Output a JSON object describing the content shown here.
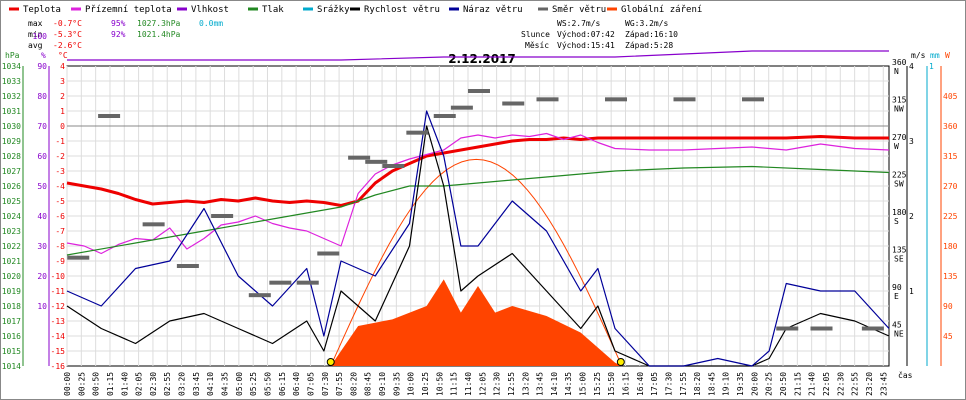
{
  "chart_data": {
    "type": "line",
    "title": "2.12.2017",
    "legend": [
      {
        "label": "Teplota",
        "color": "#ee0000"
      },
      {
        "label": "Přízemní teplota",
        "color": "#dd22dd"
      },
      {
        "label": "Vlhkost",
        "color": "#8800cc"
      },
      {
        "label": "Tlak",
        "color": "#228822"
      },
      {
        "label": "Srážky",
        "color": "#00aacc"
      },
      {
        "label": "Rychlost větru",
        "color": "#000000"
      },
      {
        "label": "Náraz větru",
        "color": "#000099"
      },
      {
        "label": "Směr větru",
        "color": "#666666"
      },
      {
        "label": "Globální záření",
        "color": "#ff4400"
      }
    ],
    "stats": {
      "max": {
        "label": "max",
        "temp": "-0.7°C",
        "hum": "95%",
        "press": "1027.3hPa",
        "rain": "0.0mm"
      },
      "min": {
        "label": "min",
        "temp": "-5.3°C",
        "hum": "92%",
        "press": "1021.4hPa"
      },
      "avg": {
        "label": "avg",
        "temp": "-2.6°C"
      }
    },
    "info": {
      "ws": "WS:2.7m/s",
      "wg": "WG:3.2m/s",
      "slunce": "Slunce",
      "sun_rise": "Východ:07:42",
      "sun_set": "Západ:16:10",
      "mesic": "Měsíc",
      "moon_rise": "Východ:15:41",
      "moon_set": "Západ:5:28"
    },
    "axes": {
      "hpa": {
        "unit": "hPa",
        "ticks": [
          "1034",
          "1033",
          "1032",
          "1031",
          "1030",
          "1029",
          "1028",
          "1027",
          "1026",
          "1025",
          "1024",
          "1023",
          "1022",
          "1021",
          "1020",
          "1019",
          "1018",
          "1017",
          "1016",
          "1015",
          "1014"
        ],
        "range": [
          1014,
          1034
        ]
      },
      "pct": {
        "unit": "%",
        "ticks": [
          "100",
          "90",
          "80",
          "70",
          "60",
          "50",
          "40",
          "30",
          "20",
          "10"
        ],
        "range": [
          0,
          100
        ]
      },
      "temp": {
        "unit": "°C",
        "ticks": [
          "4",
          "3",
          "2",
          "1",
          "0",
          "-1",
          "-2",
          "-3",
          "-4",
          "-5",
          "-6",
          "-7",
          "-8",
          "-9",
          "-10",
          "-11",
          "-12",
          "-13",
          "-14",
          "-15",
          "-16"
        ],
        "range": [
          -16,
          4
        ]
      },
      "ms": {
        "unit": "m/s",
        "ticks": [
          "4",
          "3",
          "2",
          "1"
        ],
        "range": [
          0,
          4
        ]
      },
      "mm": {
        "unit": "mm",
        "ticks": [
          "1"
        ]
      },
      "dir": {
        "ticks": [
          "360",
          "315",
          "270",
          "225",
          "180",
          "135",
          "90",
          "45"
        ],
        "letters": [
          "N",
          "NW",
          "W",
          "SW",
          "S",
          "SE",
          "E",
          "NE"
        ]
      },
      "w": {
        "unit": "W",
        "ticks": [
          "405",
          "360",
          "315",
          "270",
          "225",
          "180",
          "135",
          "90",
          "45"
        ],
        "range": [
          0,
          405
        ]
      },
      "x_unit": "čas",
      "x_ticks": [
        "00:00",
        "00:25",
        "00:50",
        "01:15",
        "01:40",
        "02:05",
        "02:30",
        "02:55",
        "03:20",
        "03:45",
        "04:10",
        "04:35",
        "05:00",
        "05:25",
        "05:50",
        "06:15",
        "06:40",
        "07:05",
        "07:30",
        "07:55",
        "08:20",
        "08:45",
        "09:10",
        "09:35",
        "10:00",
        "10:25",
        "10:50",
        "11:15",
        "11:40",
        "12:05",
        "12:30",
        "12:55",
        "13:20",
        "13:45",
        "14:10",
        "14:35",
        "15:00",
        "15:25",
        "15:50",
        "16:15",
        "16:40",
        "17:05",
        "17:30",
        "17:55",
        "18:20",
        "18:45",
        "19:10",
        "19:35",
        "20:00",
        "20:25",
        "20:50",
        "21:15",
        "21:40",
        "22:05",
        "22:30",
        "22:55",
        "23:20",
        "23:45"
      ]
    },
    "series": [
      {
        "name": "Teplota",
        "unit": "°C",
        "x": [
          0,
          0.5,
          1,
          1.5,
          2,
          2.5,
          3,
          3.5,
          4,
          4.5,
          5,
          5.5,
          6,
          6.5,
          7,
          7.5,
          8,
          8.5,
          9,
          9.5,
          10,
          10.5,
          11,
          11.5,
          12,
          12.5,
          13,
          13.5,
          14,
          14.5,
          15,
          15.5,
          16,
          17,
          18,
          19,
          20,
          21,
          22,
          23,
          24
        ],
        "y": [
          -3.8,
          -4.0,
          -4.2,
          -4.5,
          -4.9,
          -5.2,
          -5.1,
          -5.0,
          -5.1,
          -4.9,
          -5.0,
          -4.8,
          -5.0,
          -5.1,
          -5.0,
          -5.1,
          -5.3,
          -5.0,
          -3.8,
          -3.0,
          -2.5,
          -2.0,
          -1.8,
          -1.6,
          -1.4,
          -1.2,
          -1.0,
          -0.9,
          -0.9,
          -0.8,
          -0.9,
          -0.8,
          -0.8,
          -0.8,
          -0.8,
          -0.8,
          -0.8,
          -0.8,
          -0.7,
          -0.8,
          -0.8
        ]
      },
      {
        "name": "Přízemní teplota",
        "unit": "°C",
        "x": [
          0,
          0.5,
          1,
          1.5,
          2,
          2.5,
          3,
          3.5,
          4,
          4.5,
          5,
          5.5,
          6,
          6.5,
          7,
          7.5,
          8,
          8.5,
          9,
          9.5,
          10,
          10.5,
          11,
          11.5,
          12,
          12.5,
          13,
          13.5,
          14,
          14.5,
          15,
          15.5,
          16,
          17,
          18,
          19,
          20,
          21,
          22,
          23,
          24
        ],
        "y": [
          -7.8,
          -8.0,
          -8.5,
          -7.9,
          -7.5,
          -7.6,
          -6.8,
          -8.2,
          -7.5,
          -6.6,
          -6.4,
          -6.0,
          -6.5,
          -6.8,
          -7.0,
          -7.5,
          -8.0,
          -4.5,
          -3.2,
          -2.6,
          -2.2,
          -1.9,
          -1.6,
          -0.8,
          -0.6,
          -0.8,
          -0.6,
          -0.7,
          -0.5,
          -0.9,
          -0.6,
          -1.1,
          -1.5,
          -1.6,
          -1.6,
          -1.5,
          -1.4,
          -1.6,
          -1.2,
          -1.5,
          -1.6
        ]
      },
      {
        "name": "Vlhkost",
        "unit": "%",
        "x": [
          0,
          4,
          8,
          11,
          12,
          16,
          20,
          24
        ],
        "y": [
          92,
          92,
          92,
          93,
          93,
          93,
          95,
          95
        ]
      },
      {
        "name": "Tlak",
        "unit": "hPa",
        "x": [
          0,
          2,
          4,
          6,
          8,
          9,
          10,
          11,
          12,
          14,
          16,
          18,
          20,
          22,
          24
        ],
        "y": [
          1021.4,
          1022.2,
          1023.0,
          1023.8,
          1024.6,
          1025.4,
          1026.0,
          1026.0,
          1026.2,
          1026.6,
          1027.0,
          1027.2,
          1027.3,
          1027.1,
          1026.9
        ]
      },
      {
        "name": "Rychlost větru",
        "unit": "m/s",
        "x": [
          0,
          1,
          2,
          3,
          4,
          5,
          6,
          7,
          7.5,
          8,
          9,
          10,
          10.5,
          11,
          11.5,
          12,
          13,
          14,
          15,
          15.5,
          16,
          17,
          18,
          19,
          20,
          20.5,
          21,
          22,
          23,
          24
        ],
        "y": [
          0.8,
          0.5,
          0.3,
          0.6,
          0.7,
          0.5,
          0.3,
          0.6,
          0.2,
          1.0,
          0.6,
          1.6,
          3.2,
          2.4,
          1.0,
          1.2,
          1.5,
          1.0,
          0.5,
          0.8,
          0.2,
          0,
          0,
          0,
          0,
          0.1,
          0.5,
          0.7,
          0.6,
          0.4
        ]
      },
      {
        "name": "Náraz větru",
        "unit": "m/s",
        "x": [
          0,
          1,
          2,
          3,
          4,
          5,
          6,
          7,
          7.5,
          8,
          9,
          10,
          10.5,
          11,
          11.5,
          12,
          13,
          14,
          15,
          15.5,
          16,
          17,
          18,
          19,
          20,
          20.5,
          21,
          22,
          23,
          24
        ],
        "y": [
          1.0,
          0.8,
          1.3,
          1.4,
          2.1,
          1.2,
          0.8,
          1.3,
          0.4,
          1.4,
          1.2,
          1.9,
          3.4,
          2.8,
          1.6,
          1.6,
          2.2,
          1.8,
          1.0,
          1.3,
          0.5,
          0,
          0,
          0.1,
          0,
          0.2,
          1.1,
          1.0,
          1.0,
          0.5
        ]
      },
      {
        "name": "Směr větru",
        "unit": "°",
        "x": [
          0.3,
          1.2,
          2.5,
          3.5,
          4.5,
          5.6,
          6.2,
          7.0,
          7.6,
          8.5,
          9.0,
          9.5,
          10.2,
          11.0,
          11.5,
          12.0,
          13.0,
          14.0,
          16.0,
          18.0,
          20.0,
          21.0,
          22.0,
          23.5
        ],
        "y": [
          130,
          300,
          170,
          120,
          180,
          85,
          100,
          100,
          135,
          250,
          245,
          240,
          280,
          300,
          310,
          330,
          315,
          320,
          320,
          320,
          320,
          45,
          45,
          45
        ]
      },
      {
        "name": "Globální záření",
        "unit": "W",
        "x": [
          7.7,
          8.5,
          9.5,
          10.5,
          11.0,
          11.5,
          12.0,
          12.5,
          13.0,
          14.0,
          15.0,
          16.0,
          16.2
        ],
        "y": [
          0,
          60,
          70,
          90,
          130,
          80,
          120,
          80,
          90,
          75,
          50,
          5,
          0
        ]
      }
    ]
  }
}
